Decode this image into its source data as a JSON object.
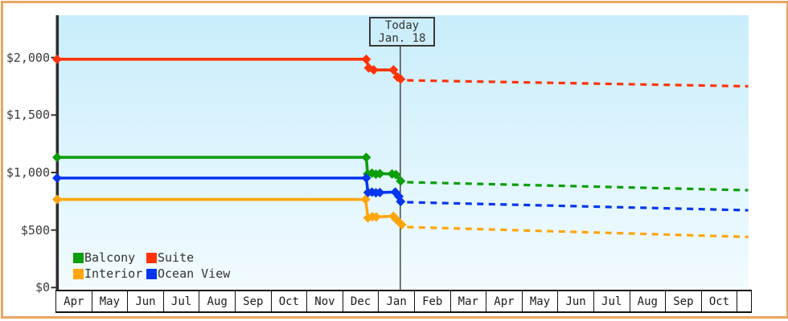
{
  "window": {
    "outer_border_color": "#e9a661",
    "background_color": "#ffffff"
  },
  "chart_data": {
    "type": "line",
    "description": "Cruise cabin price history and forecast by cabin category",
    "plot": {
      "bg_gradient_top": "#c9edfb",
      "bg_gradient_bottom": "#f1fbff",
      "axis_color": "#2d2d2d",
      "grid": "off",
      "legend_position": "bottom-left-inside"
    },
    "today_marker": {
      "line1": "Today",
      "line2": "Jan. 18",
      "month_offset": 9.57
    },
    "y_axis": {
      "unit": "USD",
      "ticks": [
        {
          "label": "$0",
          "value": 0
        },
        {
          "label": "$500",
          "value": 500
        },
        {
          "label": "$1,000",
          "value": 1000
        },
        {
          "label": "$1,500",
          "value": 1500
        },
        {
          "label": "$2,000",
          "value": 2000
        }
      ],
      "range": [
        0,
        2370
      ]
    },
    "x_axis": {
      "months": [
        "Apr",
        "May",
        "Jun",
        "Jul",
        "Aug",
        "Sep",
        "Oct",
        "Nov",
        "Dec",
        "Jan",
        "Feb",
        "Mar",
        "Apr",
        "May",
        "Jun",
        "Jul",
        "Aug",
        "Sep",
        "Oct"
      ]
    },
    "series": [
      {
        "name": "Balcony",
        "color": "#0a9e0a",
        "solid_points": [
          [
            0,
            1132
          ],
          [
            8.62,
            1132
          ],
          [
            8.66,
            988
          ],
          [
            8.78,
            995
          ],
          [
            8.89,
            986
          ],
          [
            9.0,
            990
          ],
          [
            9.34,
            988
          ],
          [
            9.45,
            982
          ],
          [
            9.58,
            926
          ]
        ],
        "forecast_dotted": [
          [
            9.76,
            916
          ],
          [
            19.27,
            846
          ]
        ]
      },
      {
        "name": "Suite",
        "color": "#ff3305",
        "solid_points": [
          [
            0,
            1985
          ],
          [
            8.62,
            1985
          ],
          [
            8.69,
            1910
          ],
          [
            8.83,
            1892
          ],
          [
            9.38,
            1892
          ],
          [
            9.49,
            1830
          ],
          [
            9.58,
            1812
          ]
        ],
        "forecast_dotted": [
          [
            9.76,
            1802
          ],
          [
            19.27,
            1750
          ]
        ]
      },
      {
        "name": "Interior",
        "color": "#ffa50a",
        "solid_points": [
          [
            0,
            766
          ],
          [
            8.6,
            766
          ],
          [
            8.67,
            606
          ],
          [
            8.79,
            616
          ],
          [
            8.9,
            614
          ],
          [
            9.38,
            620
          ],
          [
            9.45,
            594
          ],
          [
            9.56,
            562
          ],
          [
            9.61,
            546
          ]
        ],
        "forecast_dotted": [
          [
            9.76,
            526
          ],
          [
            19.27,
            440
          ]
        ]
      },
      {
        "name": "Ocean View",
        "color": "#0535f0",
        "solid_points": [
          [
            0,
            952
          ],
          [
            8.62,
            952
          ],
          [
            8.67,
            826
          ],
          [
            8.78,
            830
          ],
          [
            8.89,
            824
          ],
          [
            9.0,
            826
          ],
          [
            9.43,
            830
          ],
          [
            9.53,
            792
          ],
          [
            9.58,
            748
          ]
        ],
        "forecast_dotted": [
          [
            9.76,
            742
          ],
          [
            19.27,
            672
          ]
        ]
      }
    ],
    "legend_order": [
      "Balcony",
      "Suite",
      "Interior",
      "Ocean View"
    ]
  }
}
